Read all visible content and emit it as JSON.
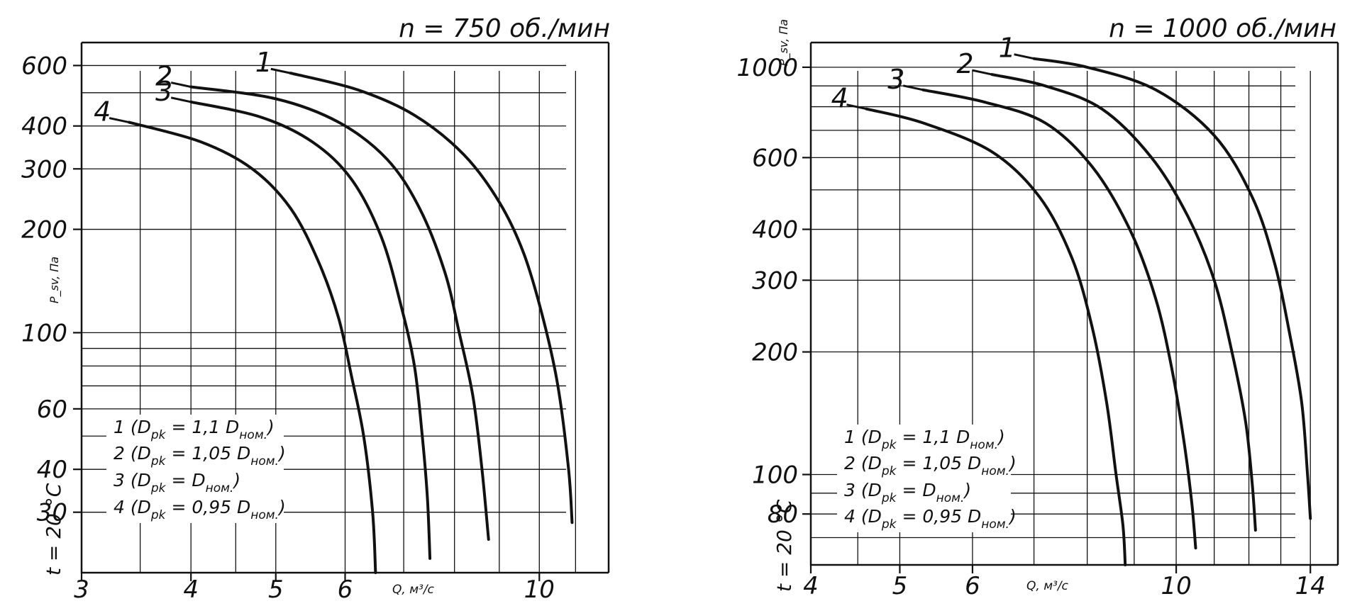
{
  "chart_data": [
    {
      "type": "line",
      "title": "n = 750 об./мин",
      "xlabel": "Q, м³/с",
      "ylabel": "P_sv, Па",
      "side_label": "t = 20 °C",
      "x_scale": "log",
      "y_scale": "log",
      "xlim": [
        3,
        12
      ],
      "ylim": [
        20,
        700
      ],
      "x_ticks": [
        3,
        4,
        5,
        6,
        10
      ],
      "y_ticks": [
        30,
        40,
        60,
        100,
        200,
        300,
        400,
        600
      ],
      "legend": [
        {
          "label": "1 (D",
          "sub": "pk",
          "mid": " = 1,1 D",
          "sub2": "ном.",
          "tail": ")"
        },
        {
          "label": "2 (D",
          "sub": "pk",
          "mid": " = 1,05 D",
          "sub2": "ном.",
          "tail": ")"
        },
        {
          "label": "3 (D",
          "sub": "pk",
          "mid": " = D",
          "sub2": "ном.",
          "tail": ")"
        },
        {
          "label": "4 (D",
          "sub": "pk",
          "mid": " = 0,95 D",
          "sub2": "ном.",
          "tail": ")"
        }
      ],
      "series": [
        {
          "name": "1",
          "x": [
            5.2,
            6.2,
            7.2,
            8.2,
            9.0,
            9.6,
            10.1,
            10.5,
            10.8,
            10.9
          ],
          "y": [
            570,
            510,
            430,
            330,
            240,
            170,
            110,
            70,
            40,
            28
          ]
        },
        {
          "name": "2",
          "x": [
            4.0,
            5.0,
            5.9,
            6.7,
            7.3,
            7.8,
            8.1,
            8.4,
            8.6,
            8.75
          ],
          "y": [
            520,
            480,
            410,
            320,
            230,
            150,
            100,
            65,
            40,
            25
          ]
        },
        {
          "name": "3",
          "x": [
            4.0,
            4.8,
            5.5,
            6.1,
            6.6,
            6.95,
            7.2,
            7.35,
            7.45,
            7.5
          ],
          "y": [
            470,
            425,
            360,
            280,
            190,
            120,
            80,
            50,
            33,
            22
          ]
        },
        {
          "name": "4",
          "x": [
            3.4,
            4.1,
            4.7,
            5.2,
            5.6,
            5.9,
            6.1,
            6.3,
            6.45,
            6.5
          ],
          "y": [
            410,
            360,
            300,
            230,
            160,
            110,
            75,
            50,
            30,
            20
          ]
        }
      ]
    },
    {
      "type": "line",
      "title": "n = 1000 об./мин",
      "xlabel": "Q, м³/с",
      "ylabel": "P_sv, Па",
      "side_label": "t = 20 °C",
      "x_scale": "log",
      "y_scale": "log",
      "xlim": [
        4,
        15
      ],
      "ylim": [
        60,
        1150
      ],
      "x_ticks": [
        4,
        5,
        6,
        10,
        14
      ],
      "y_ticks": [
        80,
        100,
        200,
        300,
        400,
        600,
        1000
      ],
      "legend": [
        {
          "label": "1 (D",
          "sub": "pk",
          "mid": " = 1,1 D",
          "sub2": "ном.",
          "tail": ")"
        },
        {
          "label": "2 (D",
          "sub": "pk",
          "mid": " = 1,05 D",
          "sub2": "ном.",
          "tail": ")"
        },
        {
          "label": "3 (D",
          "sub": "pk",
          "mid": " = D",
          "sub2": "ном.",
          "tail": ")"
        },
        {
          "label": "4 (D",
          "sub": "pk",
          "mid": " = 0,95 D",
          "sub2": "ном.",
          "tail": ")"
        }
      ],
      "series": [
        {
          "name": "1",
          "x": [
            7.0,
            8.0,
            9.5,
            11.0,
            12.1,
            12.8,
            13.3,
            13.7,
            13.9,
            14.0
          ],
          "y": [
            1050,
            1000,
            880,
            680,
            480,
            330,
            220,
            150,
            100,
            78
          ]
        },
        {
          "name": "2",
          "x": [
            6.3,
            7.2,
            8.3,
            9.4,
            10.3,
            11.0,
            11.5,
            11.9,
            12.1,
            12.2
          ],
          "y": [
            960,
            900,
            790,
            600,
            430,
            300,
            200,
            135,
            95,
            73
          ]
        },
        {
          "name": "3",
          "x": [
            5.3,
            6.2,
            7.2,
            8.1,
            8.9,
            9.5,
            9.9,
            10.2,
            10.4,
            10.5
          ],
          "y": [
            880,
            820,
            730,
            570,
            400,
            270,
            180,
            120,
            85,
            66
          ]
        },
        {
          "name": "4",
          "x": [
            4.6,
            5.3,
            6.3,
            7.1,
            7.7,
            8.1,
            8.4,
            8.6,
            8.75,
            8.8
          ],
          "y": [
            790,
            730,
            620,
            480,
            340,
            230,
            150,
            100,
            75,
            60
          ]
        }
      ]
    }
  ]
}
